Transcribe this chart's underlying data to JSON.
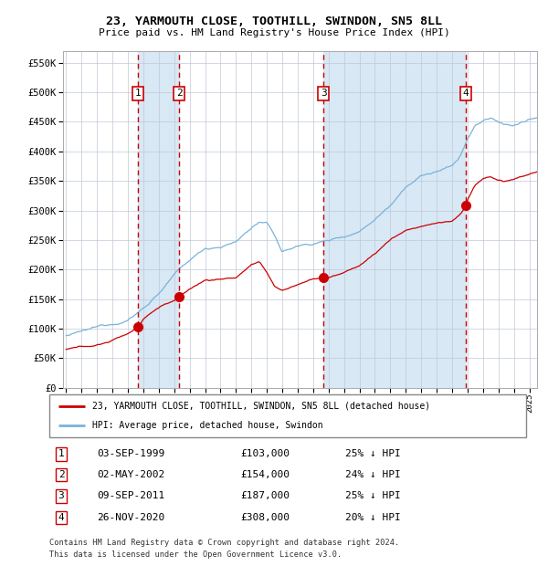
{
  "title": "23, YARMOUTH CLOSE, TOOTHILL, SWINDON, SN5 8LL",
  "subtitle": "Price paid vs. HM Land Registry's House Price Index (HPI)",
  "legend_line1": "23, YARMOUTH CLOSE, TOOTHILL, SWINDON, SN5 8LL (detached house)",
  "legend_line2": "HPI: Average price, detached house, Swindon",
  "footer1": "Contains HM Land Registry data © Crown copyright and database right 2024.",
  "footer2": "This data is licensed under the Open Government Licence v3.0.",
  "transactions": [
    {
      "num": 1,
      "date": "03-SEP-1999",
      "price": 103000,
      "pct": "25%",
      "year": 1999.67
    },
    {
      "num": 2,
      "date": "02-MAY-2002",
      "price": 154000,
      "pct": "24%",
      "year": 2002.33
    },
    {
      "num": 3,
      "date": "09-SEP-2011",
      "price": 187000,
      "pct": "25%",
      "year": 2011.67
    },
    {
      "num": 4,
      "date": "26-NOV-2020",
      "price": 308000,
      "pct": "20%",
      "year": 2020.9
    }
  ],
  "hpi_color": "#7ab3d8",
  "price_color": "#cc0000",
  "dashed_line_color": "#cc0000",
  "background_fill": "#d8e8f5",
  "grid_color": "#c0c8d8",
  "ylim": [
    0,
    570000
  ],
  "xlim_start": 1994.8,
  "xlim_end": 2025.5,
  "yticks": [
    0,
    50000,
    100000,
    150000,
    200000,
    250000,
    300000,
    350000,
    400000,
    450000,
    500000,
    550000
  ],
  "xticks": [
    1995,
    1996,
    1997,
    1998,
    1999,
    2000,
    2001,
    2002,
    2003,
    2004,
    2005,
    2006,
    2007,
    2008,
    2009,
    2010,
    2011,
    2012,
    2013,
    2014,
    2015,
    2016,
    2017,
    2018,
    2019,
    2020,
    2021,
    2022,
    2023,
    2024,
    2025
  ],
  "hpi_control_years": [
    1995.0,
    1996.0,
    1997.0,
    1998.0,
    1999.0,
    2000.0,
    2001.0,
    2002.0,
    2003.0,
    2004.0,
    2005.0,
    2006.0,
    2007.0,
    2007.5,
    2008.0,
    2008.5,
    2009.0,
    2009.5,
    2010.0,
    2011.0,
    2011.5,
    2012.0,
    2013.0,
    2014.0,
    2015.0,
    2016.0,
    2017.0,
    2018.0,
    2019.0,
    2019.5,
    2020.0,
    2020.5,
    2021.0,
    2021.5,
    2022.0,
    2022.5,
    2023.0,
    2023.5,
    2024.0,
    2024.5,
    2025.0,
    2025.5
  ],
  "hpi_control_vals": [
    88000,
    93000,
    99000,
    106000,
    115000,
    135000,
    162000,
    192000,
    215000,
    235000,
    240000,
    248000,
    272000,
    282000,
    278000,
    258000,
    230000,
    235000,
    240000,
    245000,
    248000,
    250000,
    258000,
    268000,
    290000,
    315000,
    350000,
    368000,
    375000,
    378000,
    382000,
    398000,
    428000,
    450000,
    458000,
    462000,
    455000,
    452000,
    450000,
    455000,
    458000,
    460000
  ],
  "price_control_years": [
    1995.0,
    1997.0,
    1998.0,
    1999.0,
    1999.67,
    2000.0,
    2001.0,
    2002.0,
    2002.33,
    2003.0,
    2004.0,
    2005.0,
    2006.0,
    2007.0,
    2007.5,
    2008.0,
    2008.5,
    2009.0,
    2009.5,
    2010.0,
    2011.0,
    2011.67,
    2012.0,
    2013.0,
    2014.0,
    2015.0,
    2016.0,
    2017.0,
    2018.0,
    2019.0,
    2019.5,
    2020.0,
    2020.5,
    2020.9,
    2021.0,
    2021.5,
    2022.0,
    2022.5,
    2023.0,
    2023.5,
    2024.0,
    2025.0,
    2025.5
  ],
  "price_control_vals": [
    65000,
    72000,
    80000,
    92000,
    103000,
    118000,
    138000,
    150000,
    154000,
    168000,
    183000,
    185000,
    188000,
    210000,
    213000,
    195000,
    172000,
    165000,
    170000,
    175000,
    185000,
    187000,
    188000,
    195000,
    208000,
    228000,
    252000,
    268000,
    275000,
    280000,
    282000,
    283000,
    294000,
    308000,
    320000,
    345000,
    355000,
    358000,
    352000,
    350000,
    352000,
    360000,
    365000
  ]
}
